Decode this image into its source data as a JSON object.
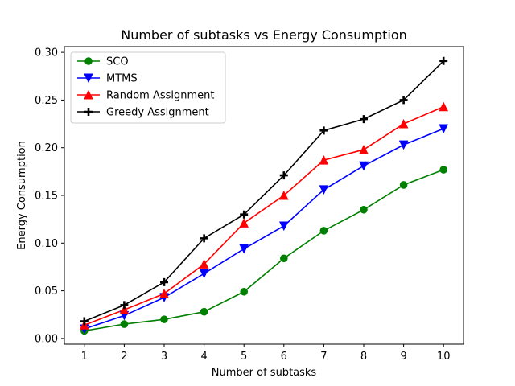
{
  "chart_data": {
    "type": "line",
    "title": "Number of subtasks vs Energy Consumption",
    "xlabel": "Number of subtasks",
    "ylabel": "Energy Consumption",
    "x": [
      1,
      2,
      3,
      4,
      5,
      6,
      7,
      8,
      9,
      10
    ],
    "xlim": [
      0.5,
      10.5
    ],
    "ylim": [
      -0.006,
      0.306
    ],
    "yticks": [
      "0.00",
      "0.05",
      "0.10",
      "0.15",
      "0.20",
      "0.25",
      "0.30"
    ],
    "ytick_values": [
      0.0,
      0.05,
      0.1,
      0.15,
      0.2,
      0.25,
      0.3
    ],
    "xticks": [
      "1",
      "2",
      "3",
      "4",
      "5",
      "6",
      "7",
      "8",
      "9",
      "10"
    ],
    "grid": false,
    "legend_position": "top-left",
    "series": [
      {
        "name": "SCO",
        "color": "#008000",
        "marker": "circle",
        "values": [
          0.008,
          0.015,
          0.02,
          0.028,
          0.049,
          0.084,
          0.113,
          0.135,
          0.161,
          0.177
        ]
      },
      {
        "name": "MTMS",
        "color": "#0000ff",
        "marker": "triangle-down",
        "values": [
          0.01,
          0.024,
          0.043,
          0.068,
          0.094,
          0.118,
          0.156,
          0.181,
          0.203,
          0.22
        ]
      },
      {
        "name": "Random Assignment",
        "color": "#ff0000",
        "marker": "triangle-up",
        "values": [
          0.014,
          0.03,
          0.047,
          0.078,
          0.121,
          0.15,
          0.187,
          0.198,
          0.225,
          0.243
        ]
      },
      {
        "name": "Greedy Assignment",
        "color": "#000000",
        "marker": "plus",
        "values": [
          0.018,
          0.035,
          0.059,
          0.105,
          0.13,
          0.171,
          0.218,
          0.23,
          0.25,
          0.291
        ]
      }
    ]
  }
}
